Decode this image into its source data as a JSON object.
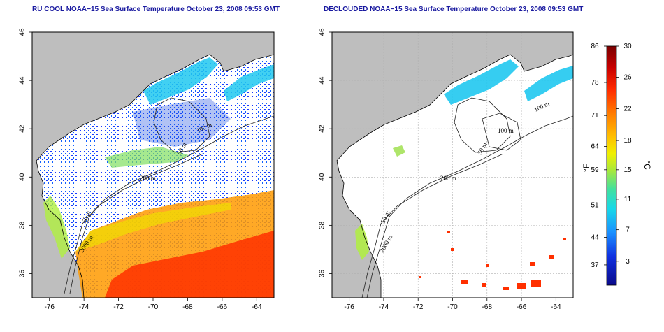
{
  "titles": {
    "left": "RU COOL NOAA−15 Sea Surface Temperature October 23, 2008 09:53 GMT",
    "right": "DECLOUDED NOAA−15 Sea Surface Temperature October 23, 2008 09:53 GMT"
  },
  "axes": {
    "x_ticks": [
      "-76",
      "-74",
      "-72",
      "-70",
      "-68",
      "-66",
      "-64"
    ],
    "y_ticks": [
      "36",
      "38",
      "40",
      "42",
      "44",
      "46"
    ]
  },
  "contour_labels": {
    "left": [
      "100 m",
      "50 m",
      "200 m",
      "50 m",
      "2000 m"
    ],
    "right": [
      "100 m",
      "100 m",
      "50 m",
      "200 m",
      "50 m",
      "2000 m"
    ]
  },
  "colorbar": {
    "fahrenheit_label": "°F",
    "celsius_label": "°C",
    "fahrenheit_ticks": [
      "86",
      "78",
      "71",
      "64",
      "59",
      "51",
      "44",
      "37"
    ],
    "celsius_ticks": [
      "30",
      "26",
      "22",
      "18",
      "15",
      "11",
      "7",
      "3"
    ],
    "colors": [
      "#7a0000",
      "#c80000",
      "#ff2a00",
      "#ff7a00",
      "#ffc000",
      "#f0f000",
      "#a8e83c",
      "#40e0a0",
      "#18d8e8",
      "#1a90ff",
      "#1030e0",
      "#0a0a8a"
    ]
  },
  "colors": {
    "land": "#bebebe",
    "title": "#1a1aa0",
    "grid": "#b0b0b0"
  }
}
